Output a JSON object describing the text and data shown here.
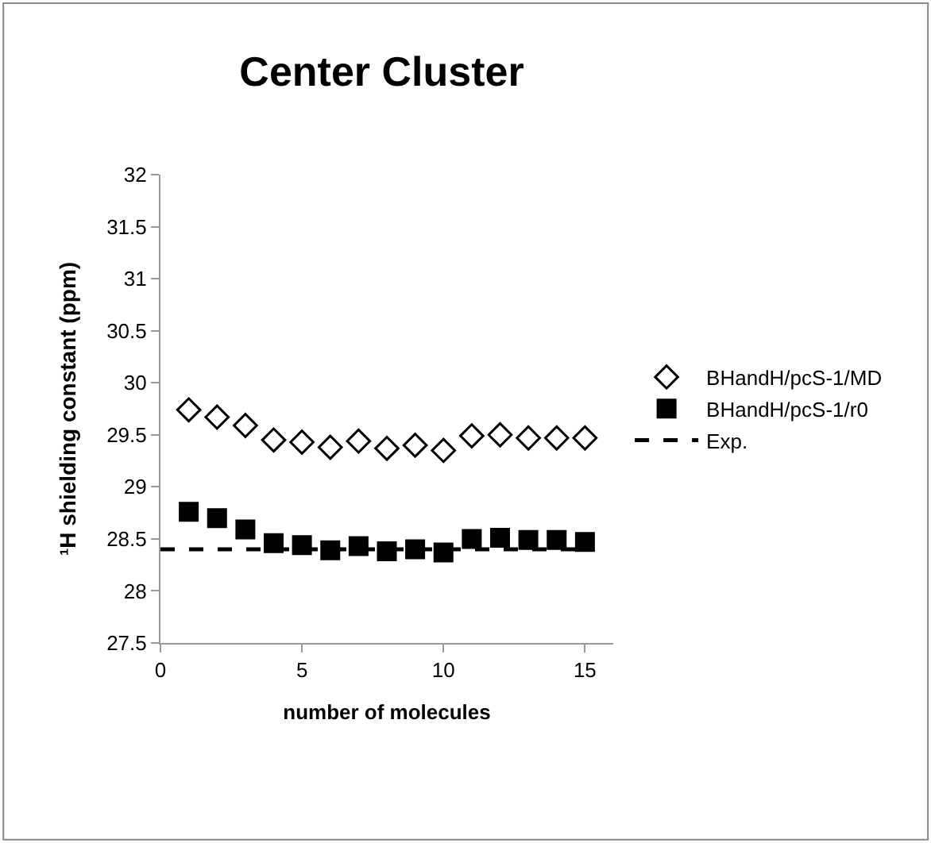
{
  "chart_data": {
    "type": "scatter",
    "title": "Center Cluster",
    "xlabel": "number of molecules",
    "ylabel": "¹H shielding constant (ppm)",
    "x": [
      1,
      2,
      3,
      4,
      5,
      6,
      7,
      8,
      9,
      10,
      11,
      12,
      13,
      14,
      15
    ],
    "series": [
      {
        "name": "BHandH/pcS-1/MD",
        "color": "#000000",
        "marker": "diamond-open",
        "values": [
          29.74,
          29.67,
          29.59,
          29.45,
          29.43,
          29.38,
          29.44,
          29.37,
          29.4,
          29.35,
          29.49,
          29.5,
          29.47,
          29.47,
          29.47
        ]
      },
      {
        "name": "BHandH/pcS-1/r0",
        "color": "#000000",
        "marker": "square",
        "values": [
          28.76,
          28.7,
          28.59,
          28.46,
          28.44,
          28.39,
          28.43,
          28.38,
          28.4,
          28.37,
          28.5,
          28.51,
          28.49,
          28.49,
          28.47
        ]
      },
      {
        "name": "Exp.",
        "type": "line",
        "color": "#000000",
        "line_style": "dashed",
        "x": [
          0,
          15
        ],
        "values": [
          28.4,
          28.4
        ]
      }
    ],
    "xlim": [
      0,
      16
    ],
    "xticks": [
      0,
      5,
      10,
      15
    ],
    "ylim": [
      27.5,
      32
    ],
    "yticks": [
      27.5,
      28,
      28.5,
      29,
      29.5,
      30,
      30.5,
      31,
      31.5,
      32
    ],
    "legend": "right"
  }
}
